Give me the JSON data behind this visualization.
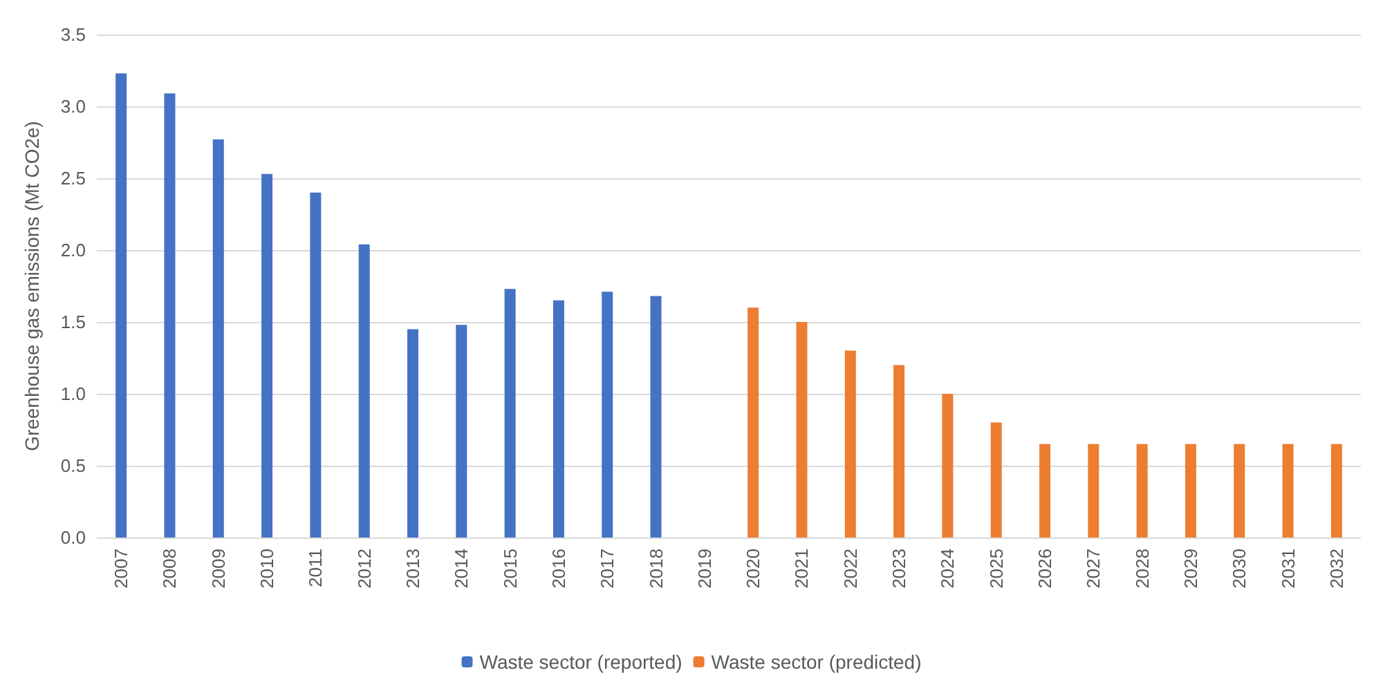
{
  "chart_data": {
    "type": "bar",
    "ylabel": "Greenhouse gas emissions (Mt CO2e)",
    "categories": [
      "2007",
      "2008",
      "2009",
      "2010",
      "2011",
      "2012",
      "2013",
      "2014",
      "2015",
      "2016",
      "2017",
      "2018",
      "2019",
      "2020",
      "2021",
      "2022",
      "2023",
      "2024",
      "2025",
      "2026",
      "2027",
      "2028",
      "2029",
      "2030",
      "2031",
      "2032"
    ],
    "series": [
      {
        "name": "Waste sector (reported)",
        "color": "#4472c4",
        "values": [
          3.23,
          3.09,
          2.77,
          2.53,
          2.4,
          2.04,
          1.45,
          1.48,
          1.73,
          1.65,
          1.71,
          1.68,
          null,
          null,
          null,
          null,
          null,
          null,
          null,
          null,
          null,
          null,
          null,
          null,
          null,
          null
        ]
      },
      {
        "name": "Waste sector (predicted)",
        "color": "#ed7d31",
        "values": [
          null,
          null,
          null,
          null,
          null,
          null,
          null,
          null,
          null,
          null,
          null,
          null,
          null,
          1.6,
          1.5,
          1.3,
          1.2,
          1.0,
          0.8,
          0.65,
          0.65,
          0.65,
          0.65,
          0.65,
          0.65,
          0.65
        ]
      }
    ],
    "ylim": [
      0,
      3.5
    ],
    "yticks": [
      {
        "value": 0,
        "label": "0.0"
      },
      {
        "value": 0.5,
        "label": "0.5"
      },
      {
        "value": 1,
        "label": "1.0"
      },
      {
        "value": 1.5,
        "label": "1.5"
      },
      {
        "value": 2,
        "label": "2.0"
      },
      {
        "value": 2.5,
        "label": "2.5"
      },
      {
        "value": 3,
        "label": "3.0"
      },
      {
        "value": 3.5,
        "label": "3.5"
      }
    ],
    "grid": "y",
    "legend": "bottom"
  }
}
